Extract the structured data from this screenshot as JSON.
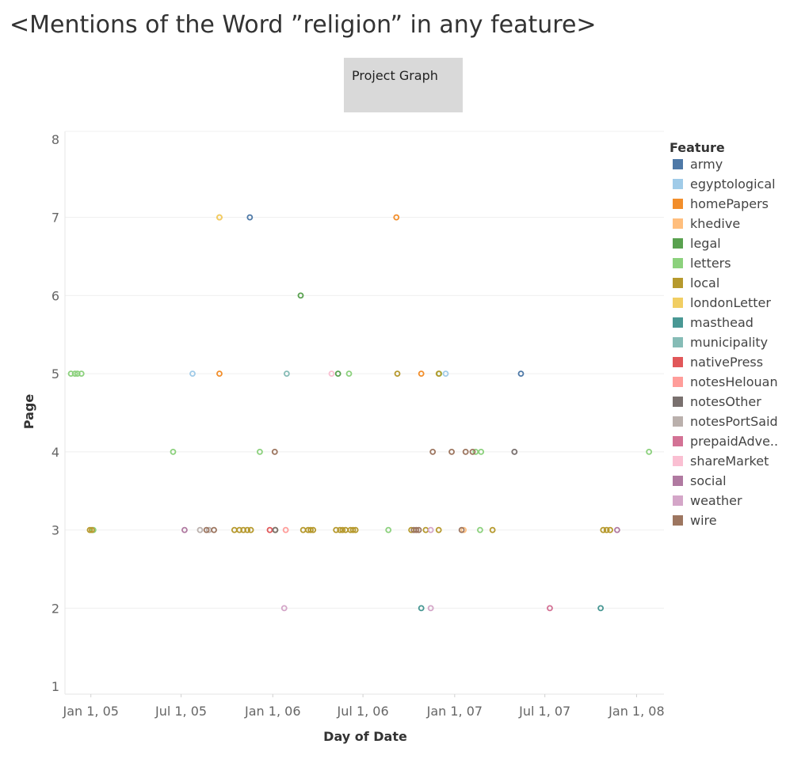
{
  "title": "<Mentions of the Word ”religion” in any feature>",
  "nav_button": {
    "label": "Project Graph"
  },
  "chart_data": {
    "type": "scatter",
    "title": "<Mentions of the Word ”religion” in any feature>",
    "xlabel": "Day of Date",
    "ylabel": "Page",
    "xlim": [
      "2004-11-10",
      "2008-02-25"
    ],
    "ylim": [
      0.9,
      8.1
    ],
    "x_ticks": [
      {
        "date": "2005-01-01",
        "label": "Jan 1, 05"
      },
      {
        "date": "2005-07-01",
        "label": "Jul 1, 05"
      },
      {
        "date": "2006-01-01",
        "label": "Jan 1, 06"
      },
      {
        "date": "2006-07-01",
        "label": "Jul 1, 06"
      },
      {
        "date": "2007-01-01",
        "label": "Jan 1, 07"
      },
      {
        "date": "2007-07-01",
        "label": "Jul 1, 07"
      },
      {
        "date": "2008-01-01",
        "label": "Jan 1, 08"
      }
    ],
    "y_ticks": [
      1,
      2,
      3,
      4,
      5,
      6,
      7,
      8
    ],
    "grid": true,
    "marker": "hollow-circle",
    "legend": {
      "title": "Feature",
      "placement": "right",
      "entries": [
        {
          "name": "army",
          "color": "#4e79a7"
        },
        {
          "name": "egyptological",
          "color": "#a0cbe8"
        },
        {
          "name": "homePapers",
          "color": "#f28e2b"
        },
        {
          "name": "khedive",
          "color": "#ffbe7d"
        },
        {
          "name": "legal",
          "color": "#59a14f"
        },
        {
          "name": "letters",
          "color": "#8cd17d"
        },
        {
          "name": "local",
          "color": "#b6992d"
        },
        {
          "name": "londonLetter",
          "color": "#f1ce63"
        },
        {
          "name": "masthead",
          "color": "#499894"
        },
        {
          "name": "municipality",
          "color": "#86bcb6"
        },
        {
          "name": "nativePress",
          "color": "#e15759"
        },
        {
          "name": "notesHelouan",
          "color": "#ff9d9a"
        },
        {
          "name": "notesOther",
          "color": "#79706e"
        },
        {
          "name": "notesPortSaid",
          "color": "#bab0ac"
        },
        {
          "name": "prepaidAdve..",
          "color": "#d37295"
        },
        {
          "name": "shareMarket",
          "color": "#fabfd2"
        },
        {
          "name": "social",
          "color": "#b07aa1"
        },
        {
          "name": "weather",
          "color": "#d4a6c8"
        },
        {
          "name": "wire",
          "color": "#9d7660"
        }
      ]
    },
    "series": [
      {
        "name": "army",
        "points": [
          {
            "x": "2005-11-16",
            "y": 7
          },
          {
            "x": "2007-05-14",
            "y": 5
          }
        ]
      },
      {
        "name": "egyptological",
        "points": [
          {
            "x": "2005-07-24",
            "y": 5
          },
          {
            "x": "2006-12-14",
            "y": 5
          }
        ]
      },
      {
        "name": "homePapers",
        "points": [
          {
            "x": "2005-09-16",
            "y": 7
          },
          {
            "x": "2005-09-16",
            "y": 5
          },
          {
            "x": "2006-09-06",
            "y": 7
          },
          {
            "x": "2006-10-26",
            "y": 5
          }
        ]
      },
      {
        "name": "khedive",
        "points": [
          {
            "x": "2007-01-19",
            "y": 3
          }
        ]
      },
      {
        "name": "legal",
        "points": [
          {
            "x": "2006-02-26",
            "y": 6
          },
          {
            "x": "2006-05-12",
            "y": 5
          }
        ]
      },
      {
        "name": "letters",
        "points": [
          {
            "x": "2004-11-22",
            "y": 5
          },
          {
            "x": "2004-11-30",
            "y": 5
          },
          {
            "x": "2004-12-05",
            "y": 5
          },
          {
            "x": "2004-12-13",
            "y": 5
          },
          {
            "x": "2005-06-15",
            "y": 4
          },
          {
            "x": "2005-12-06",
            "y": 4
          },
          {
            "x": "2006-06-03",
            "y": 5
          },
          {
            "x": "2007-02-12",
            "y": 4
          },
          {
            "x": "2007-02-23",
            "y": 4
          },
          {
            "x": "2006-08-21",
            "y": 3
          },
          {
            "x": "2008-01-26",
            "y": 4
          },
          {
            "x": "2005-01-06",
            "y": 3
          },
          {
            "x": "2006-12-01",
            "y": 5
          },
          {
            "x": "2007-02-21",
            "y": 3
          }
        ]
      },
      {
        "name": "local",
        "points": [
          {
            "x": "2004-12-30",
            "y": 3
          },
          {
            "x": "2005-01-03",
            "y": 3
          },
          {
            "x": "2005-10-16",
            "y": 3
          },
          {
            "x": "2005-10-26",
            "y": 3
          },
          {
            "x": "2005-11-03",
            "y": 3
          },
          {
            "x": "2005-11-11",
            "y": 3
          },
          {
            "x": "2005-11-18",
            "y": 3
          },
          {
            "x": "2006-01-06",
            "y": 3
          },
          {
            "x": "2006-03-03",
            "y": 3
          },
          {
            "x": "2006-03-13",
            "y": 3
          },
          {
            "x": "2006-03-18",
            "y": 3
          },
          {
            "x": "2006-03-23",
            "y": 3
          },
          {
            "x": "2006-05-08",
            "y": 3
          },
          {
            "x": "2006-05-16",
            "y": 3
          },
          {
            "x": "2006-05-21",
            "y": 3
          },
          {
            "x": "2006-05-27",
            "y": 3
          },
          {
            "x": "2006-06-06",
            "y": 3
          },
          {
            "x": "2006-06-11",
            "y": 3
          },
          {
            "x": "2006-06-16",
            "y": 3
          },
          {
            "x": "2006-09-08",
            "y": 5
          },
          {
            "x": "2006-10-06",
            "y": 3
          },
          {
            "x": "2006-11-04",
            "y": 3
          },
          {
            "x": "2006-11-30",
            "y": 5
          },
          {
            "x": "2006-11-30",
            "y": 3
          },
          {
            "x": "2007-03-18",
            "y": 3
          },
          {
            "x": "2007-10-26",
            "y": 3
          },
          {
            "x": "2007-11-02",
            "y": 3
          },
          {
            "x": "2007-11-09",
            "y": 3
          }
        ]
      },
      {
        "name": "londonLetter",
        "points": [
          {
            "x": "2005-09-16",
            "y": 7
          }
        ]
      },
      {
        "name": "masthead",
        "points": [
          {
            "x": "2006-10-26",
            "y": 2
          },
          {
            "x": "2007-10-21",
            "y": 2
          }
        ]
      },
      {
        "name": "municipality",
        "points": [
          {
            "x": "2006-01-29",
            "y": 5
          }
        ]
      },
      {
        "name": "nativePress",
        "points": [
          {
            "x": "2005-12-26",
            "y": 3
          }
        ]
      },
      {
        "name": "notesHelouan",
        "points": [
          {
            "x": "2006-01-27",
            "y": 3
          }
        ]
      },
      {
        "name": "notesOther",
        "points": [
          {
            "x": "2007-05-01",
            "y": 4
          },
          {
            "x": "2006-01-06",
            "y": 3
          }
        ]
      },
      {
        "name": "notesPortSaid",
        "points": [
          {
            "x": "2005-08-08",
            "y": 3
          },
          {
            "x": "2005-08-26",
            "y": 3
          }
        ]
      },
      {
        "name": "prepaidAdve..",
        "points": [
          {
            "x": "2007-07-11",
            "y": 2
          }
        ]
      },
      {
        "name": "shareMarket",
        "points": [
          {
            "x": "2006-04-29",
            "y": 5
          }
        ]
      },
      {
        "name": "social",
        "points": [
          {
            "x": "2005-07-08",
            "y": 3
          },
          {
            "x": "2007-11-23",
            "y": 3
          }
        ]
      },
      {
        "name": "weather",
        "points": [
          {
            "x": "2006-01-24",
            "y": 2
          },
          {
            "x": "2006-11-14",
            "y": 3
          },
          {
            "x": "2006-11-14",
            "y": 2
          }
        ]
      },
      {
        "name": "wire",
        "points": [
          {
            "x": "2005-08-21",
            "y": 3
          },
          {
            "x": "2005-09-05",
            "y": 3
          },
          {
            "x": "2006-01-05",
            "y": 4
          },
          {
            "x": "2006-11-18",
            "y": 4
          },
          {
            "x": "2006-12-26",
            "y": 4
          },
          {
            "x": "2007-01-23",
            "y": 4
          },
          {
            "x": "2007-02-06",
            "y": 4
          },
          {
            "x": "2006-10-11",
            "y": 3
          },
          {
            "x": "2006-10-16",
            "y": 3
          },
          {
            "x": "2006-10-21",
            "y": 3
          },
          {
            "x": "2007-01-15",
            "y": 3
          }
        ]
      }
    ]
  }
}
